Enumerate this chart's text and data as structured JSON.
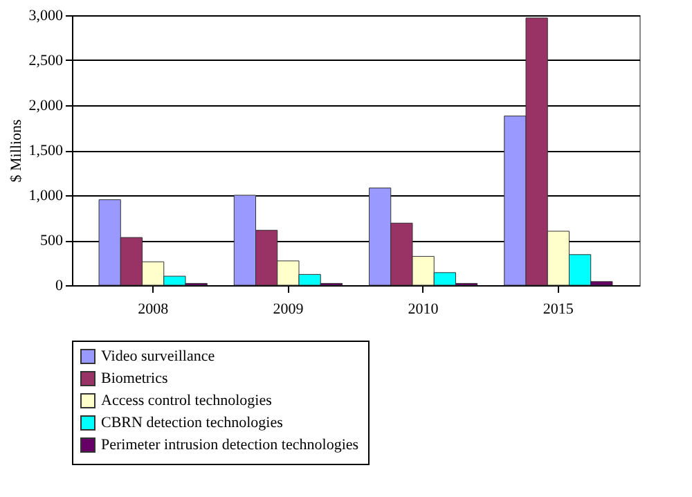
{
  "chart_data": {
    "type": "bar",
    "ylabel": "$ Millions",
    "categories": [
      "2008",
      "2009",
      "2010",
      "2015"
    ],
    "series": [
      {
        "name": "Video surveillance",
        "color": "#9999ff",
        "values": [
          950,
          1000,
          1080,
          1880
        ]
      },
      {
        "name": "Biometrics",
        "color": "#993366",
        "values": [
          530,
          610,
          690,
          2970
        ]
      },
      {
        "name": "Access control technologies",
        "color": "#ffffcc",
        "values": [
          260,
          270,
          320,
          600
        ]
      },
      {
        "name": "CBRN detection technologies",
        "color": "#00ffff",
        "values": [
          100,
          120,
          140,
          340
        ]
      },
      {
        "name": "Perimeter intrusion detection technologies",
        "color": "#660066",
        "values": [
          20,
          20,
          20,
          40
        ]
      }
    ],
    "ylim": [
      0,
      3000
    ],
    "yticks": [
      0,
      500,
      {
        "value": 1000,
        "label": "1,000"
      },
      {
        "value": 1500,
        "label": "1,500"
      },
      {
        "value": 2000,
        "label": "2,000"
      },
      {
        "value": 2500,
        "label": "2,500"
      },
      {
        "value": 3000,
        "label": "3,000"
      }
    ],
    "grid": "y",
    "legend": "bottom"
  }
}
